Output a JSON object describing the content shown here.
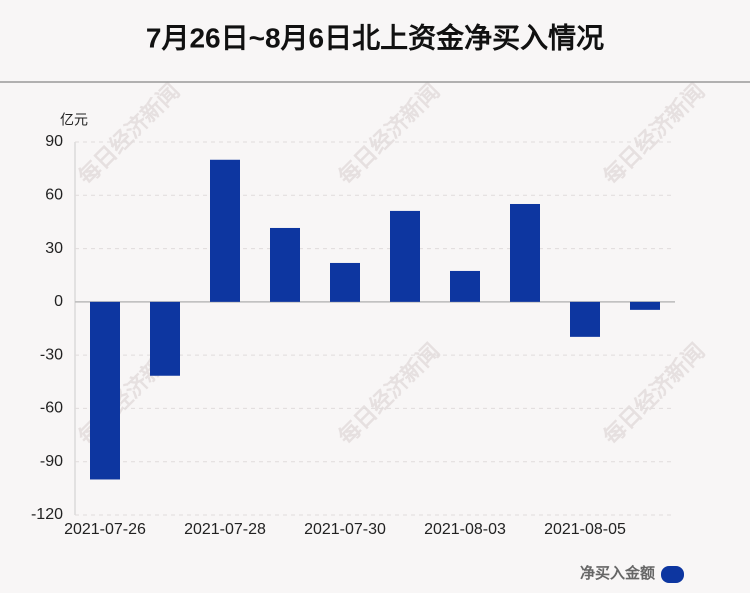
{
  "chart_data": {
    "type": "bar",
    "title": "7月26日~8月6日北上资金净买入情况",
    "y_label": "亿元",
    "watermark": "每日经济新闻",
    "categories": [
      "2021-07-26",
      null,
      "2021-07-28",
      null,
      "2021-07-30",
      null,
      "2021-08-03",
      null,
      "2021-08-05",
      null
    ],
    "series": [
      {
        "name": "净买入金额",
        "color": "#0d36a0",
        "values": [
          -100,
          -41.6,
          80,
          41.6,
          21.9,
          51.2,
          17.4,
          55.1,
          -19.7,
          -4.5
        ]
      }
    ],
    "ylim": [
      -120,
      90
    ],
    "yticks": [
      -120,
      -90,
      -60,
      -30,
      0,
      30,
      60,
      90
    ],
    "grid": true
  }
}
